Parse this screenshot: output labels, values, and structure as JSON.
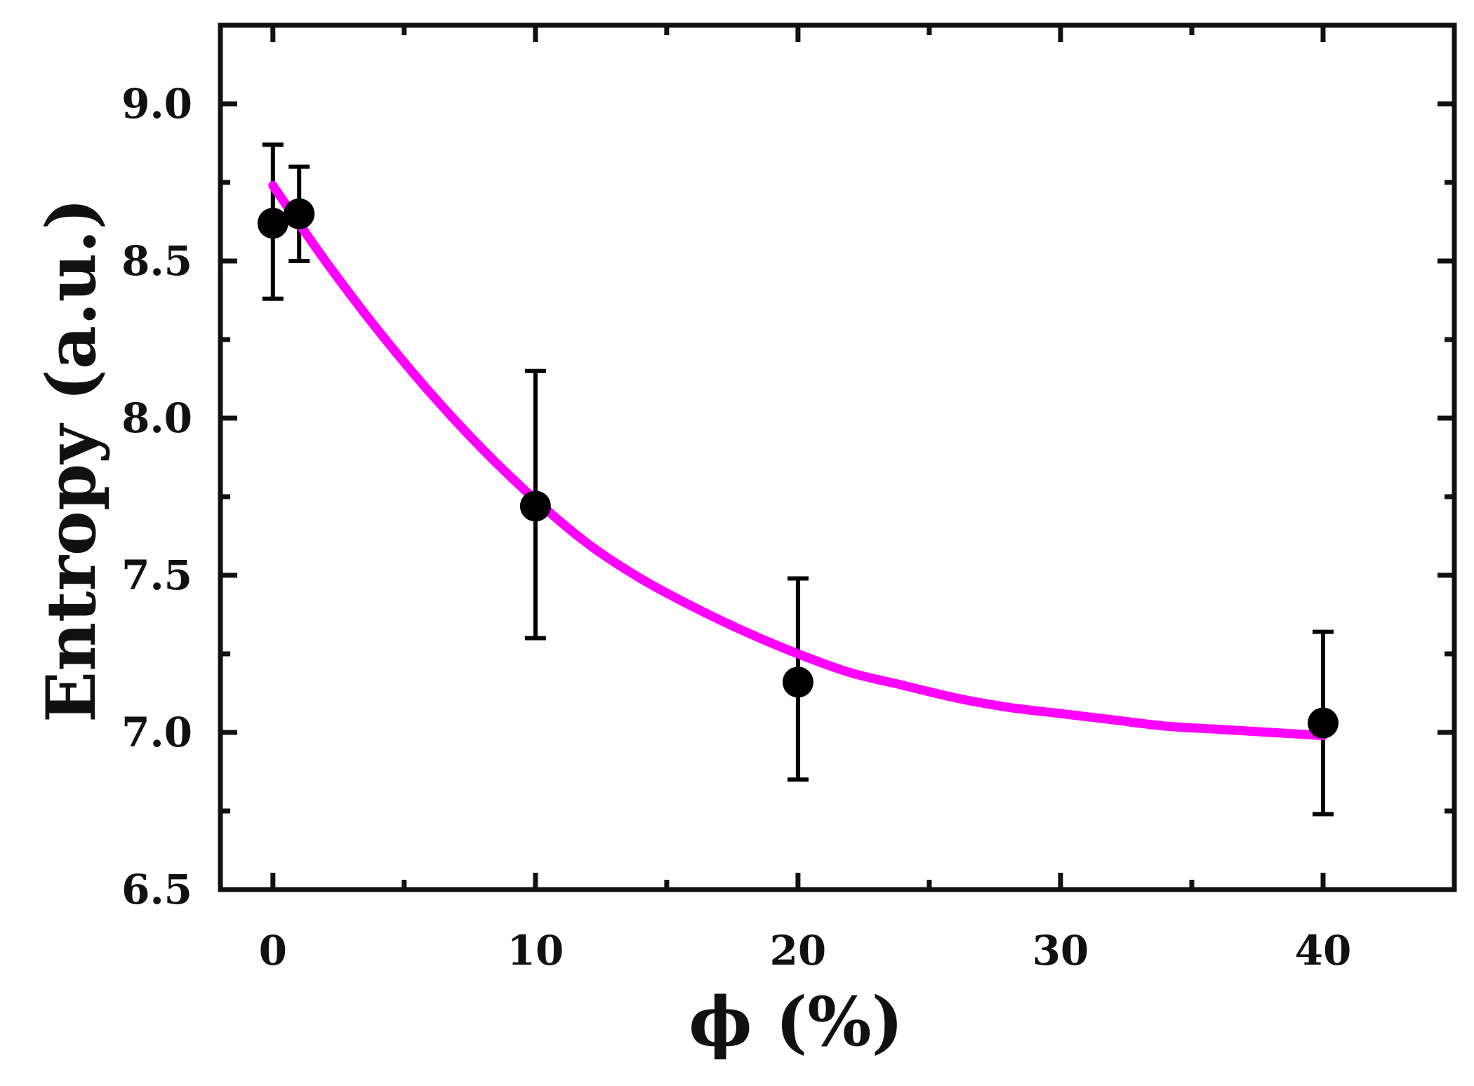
{
  "chart_data": {
    "type": "scatter",
    "xlabel": "ϕ (%)",
    "ylabel": "Entropy (a.u.)",
    "xlim": [
      -2,
      45
    ],
    "ylim": [
      6.5,
      9.25
    ],
    "xticks": [
      0,
      10,
      20,
      30,
      40
    ],
    "xtick_labels": [
      "0",
      "10",
      "20",
      "30",
      "40"
    ],
    "yticks": [
      6.5,
      7.0,
      7.5,
      8.0,
      8.5,
      9.0
    ],
    "ytick_labels": [
      "6.5",
      "7.0",
      "7.5",
      "8.0",
      "8.5",
      "9.0"
    ],
    "grid": false,
    "points": [
      {
        "x": 0,
        "y": 8.62,
        "err_low": 8.38,
        "err_high": 8.87
      },
      {
        "x": 1,
        "y": 8.65,
        "err_low": 8.5,
        "err_high": 8.8
      },
      {
        "x": 10,
        "y": 7.72,
        "err_low": 7.3,
        "err_high": 8.15
      },
      {
        "x": 20,
        "y": 7.16,
        "err_low": 6.85,
        "err_high": 7.49
      },
      {
        "x": 40,
        "y": 7.03,
        "err_low": 6.74,
        "err_high": 7.32
      }
    ],
    "fit_curve": {
      "color": "#ff00ff",
      "x": [
        0,
        2,
        4,
        6,
        8,
        10,
        12,
        14,
        16,
        18,
        20,
        22,
        24,
        26,
        28,
        30,
        32,
        34,
        36,
        38,
        40
      ],
      "y": [
        8.74,
        8.5,
        8.28,
        8.08,
        7.9,
        7.74,
        7.6,
        7.49,
        7.4,
        7.32,
        7.25,
        7.19,
        7.15,
        7.11,
        7.08,
        7.06,
        7.04,
        7.02,
        7.01,
        7.0,
        6.99
      ]
    },
    "marker_color": "#000000"
  }
}
